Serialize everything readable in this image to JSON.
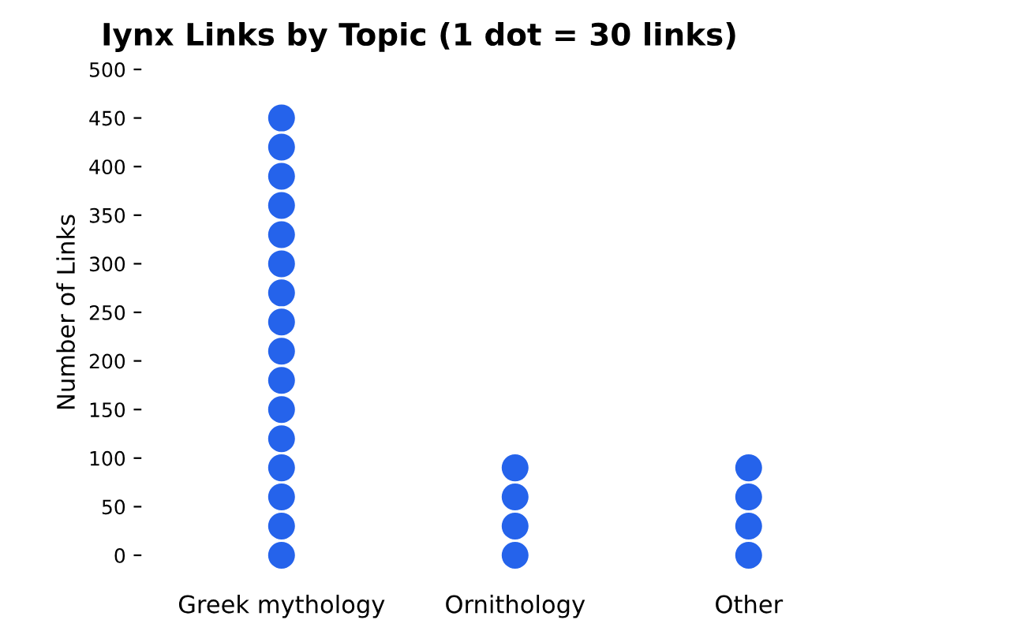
{
  "chart_data": {
    "type": "scatter",
    "title": "Iynx Links by Topic (1 dot = 30 links)",
    "ylabel": "Number of Links",
    "categories": [
      "Greek mythology",
      "Ornithology",
      "Other"
    ],
    "series": [
      {
        "color": "#2563eb",
        "x": [
          "Greek mythology",
          "Greek mythology",
          "Greek mythology",
          "Greek mythology",
          "Greek mythology",
          "Greek mythology",
          "Greek mythology",
          "Greek mythology",
          "Greek mythology",
          "Greek mythology",
          "Greek mythology",
          "Greek mythology",
          "Greek mythology",
          "Greek mythology",
          "Greek mythology",
          "Greek mythology",
          "Ornithology",
          "Ornithology",
          "Ornithology",
          "Ornithology",
          "Other",
          "Other",
          "Other",
          "Other"
        ],
        "values": [
          0,
          30,
          60,
          90,
          120,
          150,
          180,
          210,
          240,
          270,
          300,
          330,
          360,
          390,
          420,
          450,
          0,
          30,
          60,
          90,
          0,
          30,
          60,
          90
        ]
      }
    ],
    "ylim": [
      0,
      500
    ],
    "yticks": [
      0,
      50,
      100,
      150,
      200,
      250,
      300,
      350,
      400,
      450,
      500
    ],
    "marker": "circle",
    "grid": false,
    "legend": false
  }
}
